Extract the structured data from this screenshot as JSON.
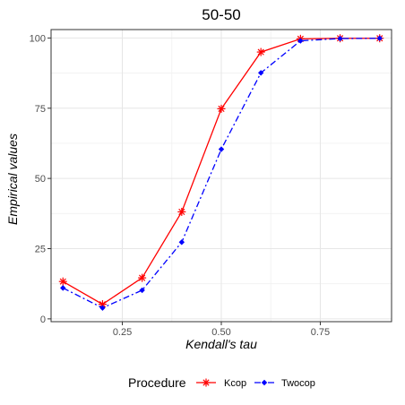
{
  "chart_data": {
    "type": "line",
    "title": "50-50",
    "xlabel": "Kendall's tau",
    "ylabel": "Empirical values",
    "xlim": [
      0.07,
      0.93
    ],
    "ylim": [
      -1,
      103
    ],
    "x_ticks": [
      0.25,
      0.5,
      0.75
    ],
    "x_tick_labels": [
      "0.25",
      "0.50",
      "0.75"
    ],
    "y_ticks": [
      0,
      25,
      50,
      75,
      100
    ],
    "y_tick_labels": [
      "0",
      "25",
      "50",
      "75",
      "100"
    ],
    "grid": true,
    "legend_position": "bottom",
    "legend_title": "Procedure",
    "x": [
      0.1,
      0.2,
      0.3,
      0.4,
      0.5,
      0.6,
      0.7,
      0.8,
      0.9
    ],
    "series": [
      {
        "name": "Kcop",
        "color": "#ff0000",
        "line_style": "solid",
        "marker": "asterisk",
        "values": [
          13.3,
          5.2,
          14.6,
          38.1,
          74.8,
          95.0,
          99.7,
          99.9,
          99.9
        ]
      },
      {
        "name": "Twocop",
        "color": "#0000ff",
        "line_style": "dashdot",
        "marker": "diamond",
        "values": [
          11.0,
          3.9,
          10.2,
          27.3,
          60.4,
          87.6,
          99.0,
          99.8,
          99.9
        ]
      }
    ]
  }
}
